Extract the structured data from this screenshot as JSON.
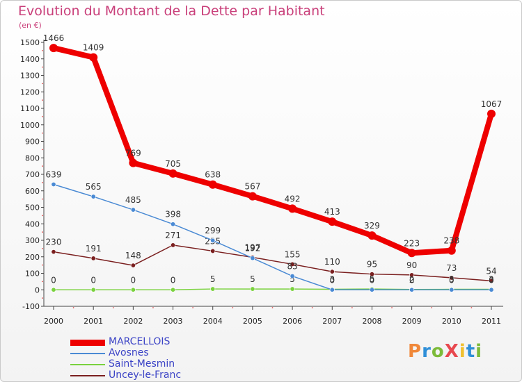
{
  "title": "Evolution du Montant de la Dette par Habitant",
  "unit_label": "(en €)",
  "logo_text": "ProXiti",
  "logo_colors": [
    "#f0883a",
    "#2f8fd8",
    "#7dbb3a",
    "#e8484f",
    "#f0c030",
    "#2f8fd8",
    "#7dbb3a"
  ],
  "chart_data": {
    "type": "line",
    "x": [
      2000,
      2001,
      2002,
      2003,
      2004,
      2005,
      2006,
      2007,
      2008,
      2009,
      2010,
      2011
    ],
    "ylim": [
      -100,
      1500
    ],
    "yticks": [
      -100,
      0,
      100,
      200,
      300,
      400,
      500,
      600,
      700,
      800,
      900,
      1000,
      1100,
      1200,
      1300,
      1400,
      1500
    ],
    "grid": false,
    "legend_position": "bottom-left",
    "series": [
      {
        "name": "MARCELLOIS",
        "color": "#ee0000",
        "emphasis": true,
        "values": [
          1466,
          1409,
          769,
          705,
          638,
          567,
          492,
          413,
          329,
          223,
          238,
          1067
        ]
      },
      {
        "name": "Avosnes",
        "color": "#4a8ad4",
        "emphasis": false,
        "values": [
          639,
          565,
          485,
          398,
          299,
          192,
          83,
          0,
          0,
          0,
          0,
          0
        ]
      },
      {
        "name": "Saint-Mesmin",
        "color": "#7ad23e",
        "emphasis": false,
        "values": [
          0,
          0,
          0,
          0,
          5,
          5,
          5,
          3,
          5,
          2,
          3,
          3
        ]
      },
      {
        "name": "Uncey-le-Franc",
        "color": "#7a1f1f",
        "emphasis": false,
        "values": [
          230,
          191,
          148,
          271,
          235,
          197,
          155,
          110,
          95,
          90,
          73,
          54
        ]
      }
    ]
  }
}
